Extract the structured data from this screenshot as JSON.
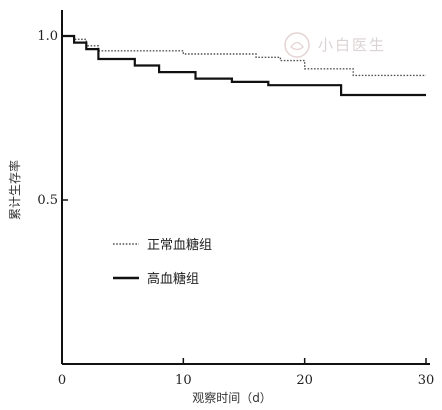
{
  "chart_data": {
    "type": "line",
    "xlabel": "观察时间（d）",
    "ylabel": "累计生存率",
    "xlim": [
      0,
      30
    ],
    "ylim": [
      0,
      1.0
    ],
    "xticks": [
      "0",
      "10",
      "20",
      "30"
    ],
    "yticks": [
      "0.5",
      "1.0"
    ],
    "grid": false,
    "legend_placement": "center-left",
    "series": [
      {
        "name": "正常血糖组",
        "style": "dotted",
        "color": "#555555",
        "x": [
          0,
          1,
          1,
          2,
          2,
          3,
          3,
          10,
          10,
          16,
          16,
          18,
          18,
          20,
          20,
          24,
          24,
          30
        ],
        "y": [
          1.0,
          1.0,
          0.99,
          0.99,
          0.97,
          0.97,
          0.955,
          0.955,
          0.945,
          0.945,
          0.935,
          0.935,
          0.925,
          0.925,
          0.9,
          0.9,
          0.88,
          0.88
        ]
      },
      {
        "name": "高血糖组",
        "style": "solid",
        "color": "#111111",
        "x": [
          0,
          1,
          1,
          2,
          2,
          3,
          3,
          6,
          6,
          8,
          8,
          11,
          11,
          14,
          14,
          17,
          17,
          23,
          23,
          30
        ],
        "y": [
          1.0,
          1.0,
          0.98,
          0.98,
          0.96,
          0.96,
          0.93,
          0.93,
          0.91,
          0.91,
          0.89,
          0.89,
          0.87,
          0.87,
          0.86,
          0.86,
          0.85,
          0.85,
          0.82,
          0.82
        ]
      }
    ]
  },
  "watermark": {
    "text": "小白医生"
  }
}
